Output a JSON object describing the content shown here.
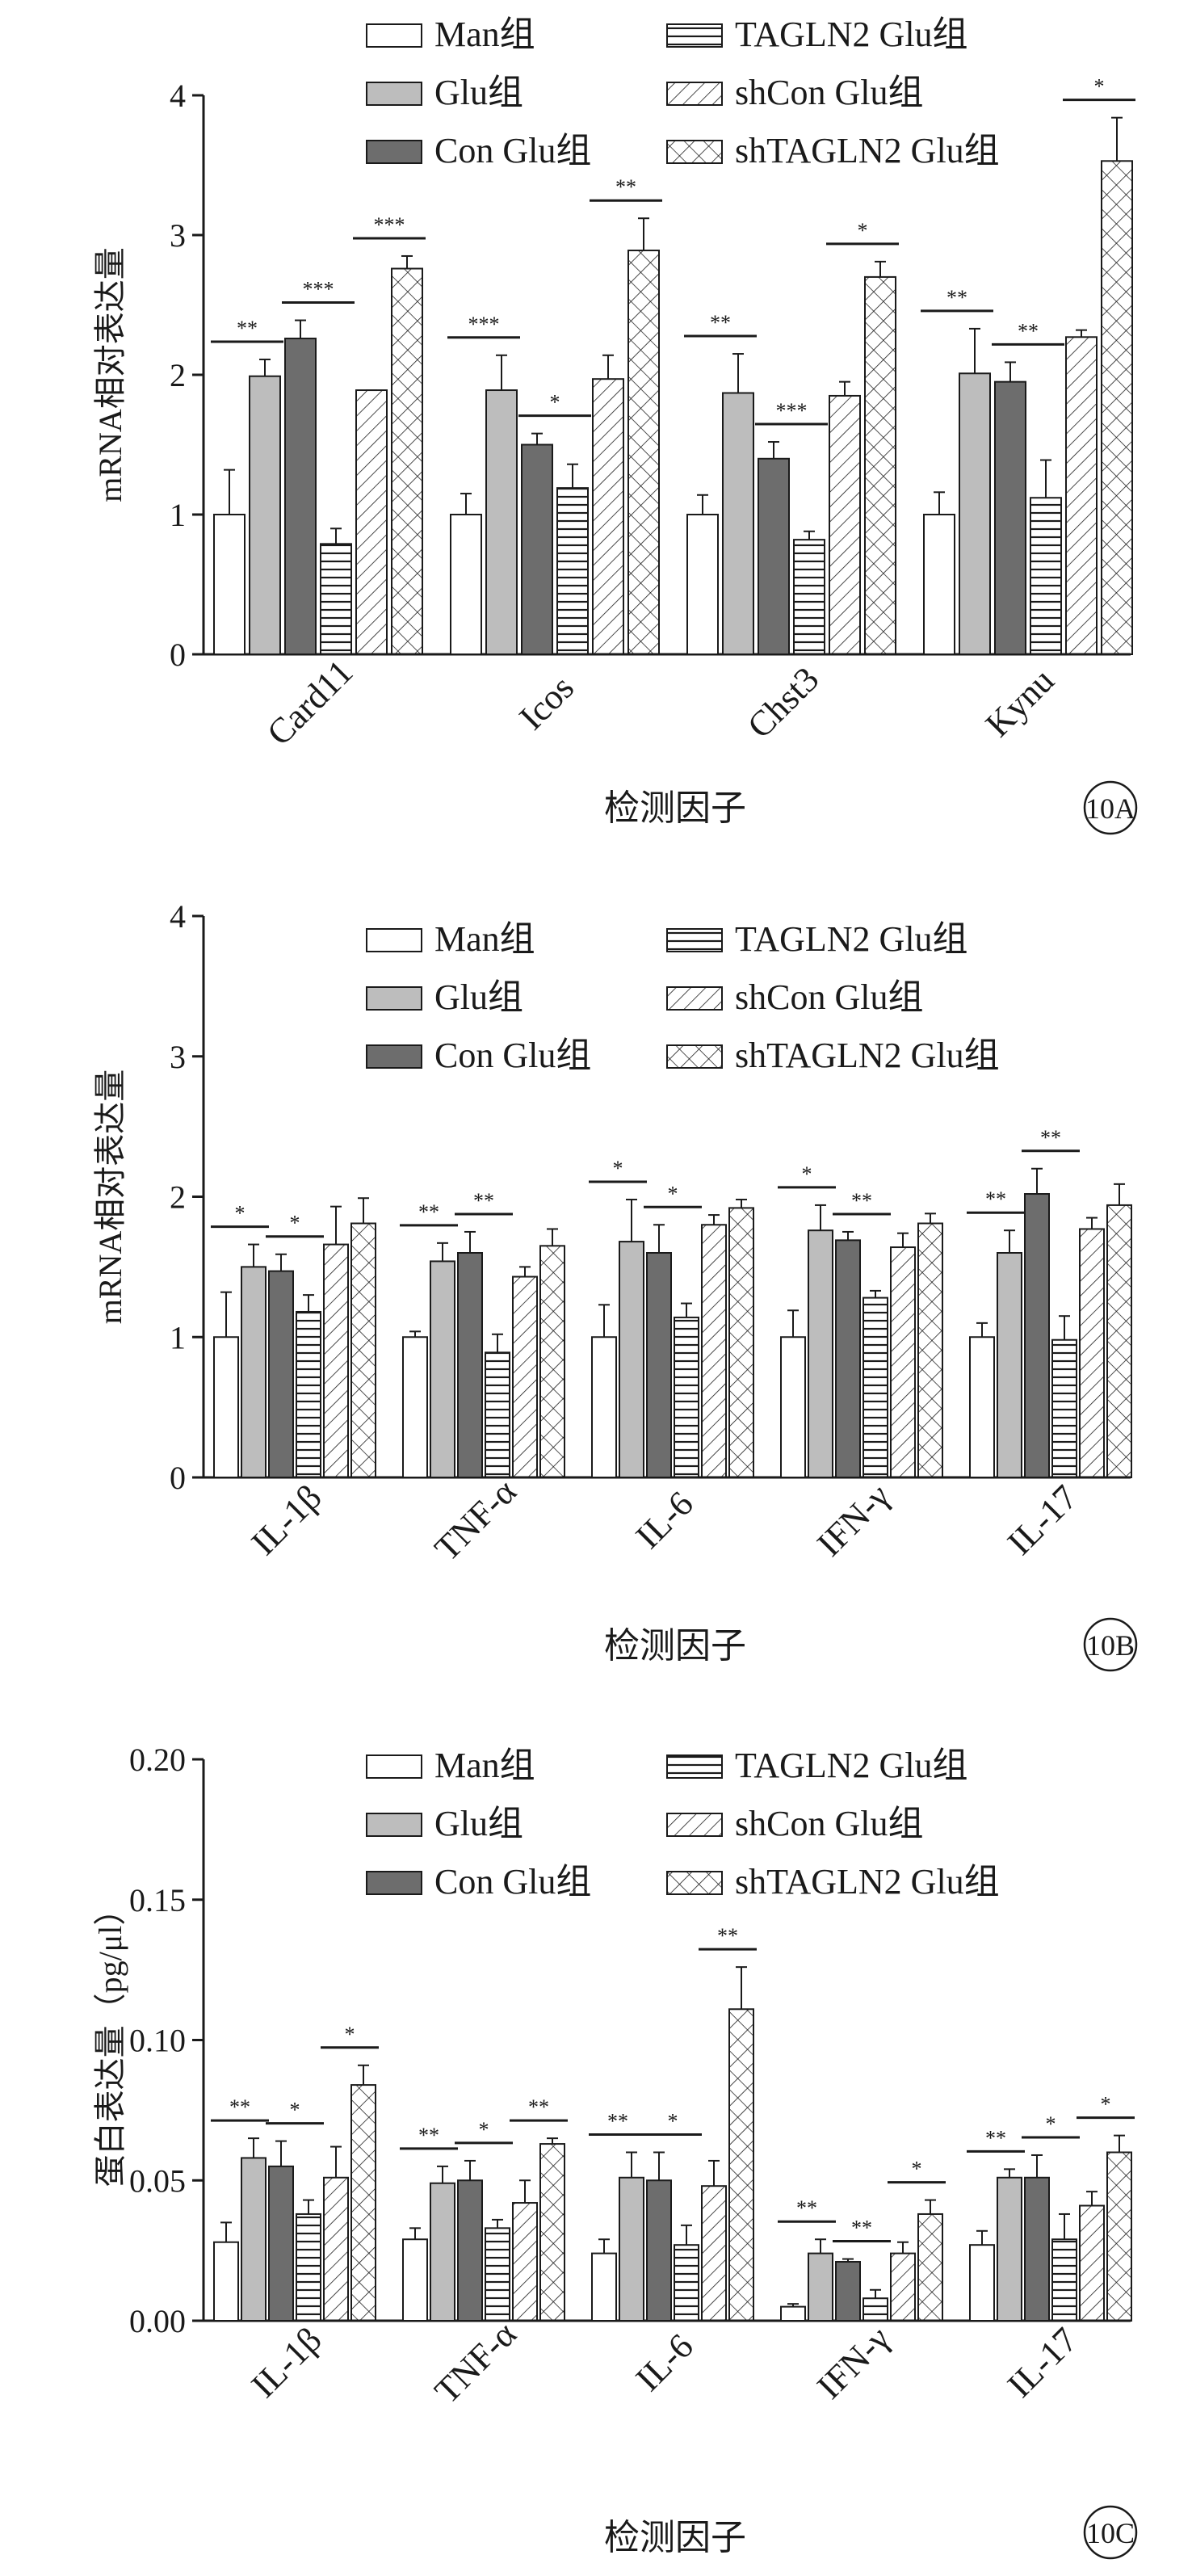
{
  "legend_labels": [
    "Man组",
    "Glu组",
    "Con Glu组",
    "TAGLN2 Glu组",
    "shCon Glu组",
    "shTAGLN2 Glu组"
  ],
  "colors": {
    "ink": "#1a1a1a",
    "Man组": "#ffffff",
    "Glu组": "#bdbdbd",
    "Con Glu组": "#6d6d6d",
    "TAGLN2 Glu组": "#ffffff",
    "shCon Glu组": "#ffffff",
    "shTAGLN2 Glu组": "#ffffff"
  },
  "chart_data": [
    {
      "type": "bar",
      "panel_label": "10A",
      "ylabel": "mRNA相对表达量",
      "xlabel": "检测因子",
      "ylim": [
        0,
        4
      ],
      "yticks": [
        "0",
        "1",
        "2",
        "3",
        "4"
      ],
      "categories": [
        "Card11",
        "Icos",
        "Chst3",
        "Kynu"
      ],
      "series": [
        {
          "name": "Man组",
          "values": [
            1.0,
            1.0,
            1.0,
            1.0
          ],
          "errors": [
            0.32,
            0.15,
            0.14,
            0.16
          ]
        },
        {
          "name": "Glu组",
          "values": [
            1.99,
            1.89,
            1.87,
            2.01
          ],
          "errors": [
            0.12,
            0.25,
            0.28,
            0.32
          ]
        },
        {
          "name": "Con Glu组",
          "values": [
            2.26,
            1.5,
            1.4,
            1.95
          ],
          "errors": [
            0.13,
            0.08,
            0.12,
            0.14
          ]
        },
        {
          "name": "TAGLN2 Glu组",
          "values": [
            0.79,
            1.19,
            0.82,
            1.12
          ],
          "errors": [
            0.11,
            0.17,
            0.06,
            0.27
          ]
        },
        {
          "name": "shCon Glu组",
          "values": [
            1.89,
            1.97,
            1.85,
            2.27
          ],
          "errors": [
            0.0,
            0.17,
            0.1,
            0.05
          ]
        },
        {
          "name": "shTAGLN2 Glu组",
          "values": [
            2.76,
            2.89,
            2.7,
            3.53
          ],
          "errors": [
            0.09,
            0.23,
            0.11,
            0.31
          ]
        }
      ],
      "significance": [
        {
          "category": 0,
          "from": 0,
          "to": 1,
          "label": "**"
        },
        {
          "category": 0,
          "from": 2,
          "to": 3,
          "label": "***"
        },
        {
          "category": 0,
          "from": 4,
          "to": 5,
          "label": "***"
        },
        {
          "category": 1,
          "from": 0,
          "to": 1,
          "label": "***"
        },
        {
          "category": 1,
          "from": 2,
          "to": 3,
          "label": "*"
        },
        {
          "category": 1,
          "from": 4,
          "to": 5,
          "label": "**"
        },
        {
          "category": 2,
          "from": 0,
          "to": 1,
          "label": "**"
        },
        {
          "category": 2,
          "from": 2,
          "to": 3,
          "label": "***"
        },
        {
          "category": 2,
          "from": 4,
          "to": 5,
          "label": "*"
        },
        {
          "category": 3,
          "from": 0,
          "to": 1,
          "label": "**"
        },
        {
          "category": 3,
          "from": 2,
          "to": 3,
          "label": "**"
        },
        {
          "category": 3,
          "from": 4,
          "to": 5,
          "label": "*"
        }
      ]
    },
    {
      "type": "bar",
      "panel_label": "10B",
      "ylabel": "mRNA相对表达量",
      "xlabel": "检测因子",
      "ylim": [
        0,
        4
      ],
      "yticks": [
        "0",
        "1",
        "2",
        "3",
        "4"
      ],
      "categories": [
        "IL-1β",
        "TNF-α",
        "IL-6",
        "IFN-γ",
        "IL-17"
      ],
      "series": [
        {
          "name": "Man组",
          "values": [
            1.0,
            1.0,
            1.0,
            1.0,
            1.0
          ],
          "errors": [
            0.32,
            0.04,
            0.23,
            0.19,
            0.1
          ]
        },
        {
          "name": "Glu组",
          "values": [
            1.5,
            1.54,
            1.68,
            1.76,
            1.6
          ],
          "errors": [
            0.16,
            0.13,
            0.3,
            0.18,
            0.16
          ]
        },
        {
          "name": "Con Glu组",
          "values": [
            1.47,
            1.6,
            1.6,
            1.69,
            2.02
          ],
          "errors": [
            0.12,
            0.15,
            0.2,
            0.06,
            0.18
          ]
        },
        {
          "name": "TAGLN2 Glu组",
          "values": [
            1.18,
            0.89,
            1.14,
            1.28,
            0.98
          ],
          "errors": [
            0.12,
            0.13,
            0.1,
            0.05,
            0.17
          ]
        },
        {
          "name": "shCon Glu组",
          "values": [
            1.66,
            1.43,
            1.8,
            1.64,
            1.77
          ],
          "errors": [
            0.27,
            0.07,
            0.07,
            0.1,
            0.08
          ]
        },
        {
          "name": "shTAGLN2 Glu组",
          "values": [
            1.81,
            1.65,
            1.92,
            1.81,
            1.94
          ],
          "errors": [
            0.18,
            0.12,
            0.06,
            0.07,
            0.15
          ]
        }
      ],
      "significance": [
        {
          "category": 0,
          "from": 0,
          "to": 1,
          "label": "*"
        },
        {
          "category": 0,
          "from": 2,
          "to": 3,
          "label": "*"
        },
        {
          "category": 1,
          "from": 0,
          "to": 1,
          "label": "**"
        },
        {
          "category": 1,
          "from": 2,
          "to": 3,
          "label": "**"
        },
        {
          "category": 2,
          "from": 0,
          "to": 1,
          "label": "*"
        },
        {
          "category": 2,
          "from": 2,
          "to": 3,
          "label": "*"
        },
        {
          "category": 3,
          "from": 0,
          "to": 1,
          "label": "*"
        },
        {
          "category": 3,
          "from": 2,
          "to": 3,
          "label": "**"
        },
        {
          "category": 4,
          "from": 0,
          "to": 1,
          "label": "**"
        },
        {
          "category": 4,
          "from": 2,
          "to": 3,
          "label": "**"
        }
      ]
    },
    {
      "type": "bar",
      "panel_label": "10C",
      "ylabel": "蛋白表达量（pg/μl）",
      "xlabel": "检测因子",
      "ylim": [
        0,
        0.2
      ],
      "yticks": [
        "0.00",
        "0.05",
        "0.10",
        "0.15",
        "0.20"
      ],
      "categories": [
        "IL-1β",
        "TNF-α",
        "IL-6",
        "IFN-γ",
        "IL-17"
      ],
      "series": [
        {
          "name": "Man组",
          "values": [
            0.028,
            0.029,
            0.024,
            0.005,
            0.027
          ],
          "errors": [
            0.007,
            0.004,
            0.005,
            0.001,
            0.005
          ]
        },
        {
          "name": "Glu组",
          "values": [
            0.058,
            0.049,
            0.051,
            0.024,
            0.051
          ],
          "errors": [
            0.007,
            0.006,
            0.009,
            0.005,
            0.003
          ]
        },
        {
          "name": "Con Glu组",
          "values": [
            0.055,
            0.05,
            0.05,
            0.021,
            0.051
          ],
          "errors": [
            0.009,
            0.007,
            0.01,
            0.001,
            0.008
          ]
        },
        {
          "name": "TAGLN2 Glu组",
          "values": [
            0.038,
            0.033,
            0.027,
            0.008,
            0.029
          ],
          "errors": [
            0.005,
            0.003,
            0.007,
            0.003,
            0.009
          ]
        },
        {
          "name": "shCon Glu组",
          "values": [
            0.051,
            0.042,
            0.048,
            0.024,
            0.041
          ],
          "errors": [
            0.011,
            0.008,
            0.009,
            0.004,
            0.005
          ]
        },
        {
          "name": "shTAGLN2 Glu组",
          "values": [
            0.084,
            0.063,
            0.111,
            0.038,
            0.06
          ],
          "errors": [
            0.007,
            0.002,
            0.015,
            0.005,
            0.006
          ]
        }
      ],
      "significance": [
        {
          "category": 0,
          "from": 0,
          "to": 1,
          "label": "**"
        },
        {
          "category": 0,
          "from": 2,
          "to": 3,
          "label": "*"
        },
        {
          "category": 0,
          "from": 4,
          "to": 5,
          "label": "*"
        },
        {
          "category": 1,
          "from": 0,
          "to": 1,
          "label": "**"
        },
        {
          "category": 1,
          "from": 2,
          "to": 3,
          "label": "*"
        },
        {
          "category": 1,
          "from": 4,
          "to": 5,
          "label": "**"
        },
        {
          "category": 2,
          "from": 0,
          "to": 1,
          "label": "**"
        },
        {
          "category": 2,
          "from": 2,
          "to": 3,
          "label": "*"
        },
        {
          "category": 2,
          "from": 4,
          "to": 5,
          "label": "**"
        },
        {
          "category": 3,
          "from": 0,
          "to": 1,
          "label": "**"
        },
        {
          "category": 3,
          "from": 2,
          "to": 3,
          "label": "**"
        },
        {
          "category": 3,
          "from": 4,
          "to": 5,
          "label": "*"
        },
        {
          "category": 4,
          "from": 0,
          "to": 1,
          "label": "**"
        },
        {
          "category": 4,
          "from": 2,
          "to": 3,
          "label": "*"
        },
        {
          "category": 4,
          "from": 4,
          "to": 5,
          "label": "*"
        }
      ]
    }
  ]
}
